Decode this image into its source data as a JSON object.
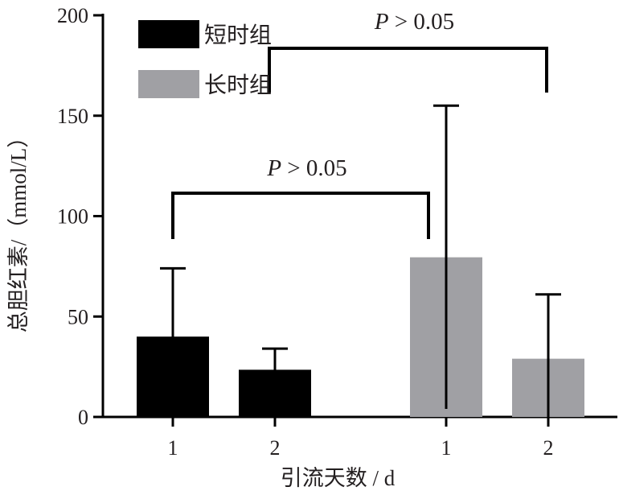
{
  "chart_data": {
    "type": "bar",
    "title": "",
    "ylabel": "总胆红素/（mmol/L）",
    "xlabel": "引流天数 / d",
    "ylim": [
      0,
      200
    ],
    "yticks": [
      0,
      50,
      100,
      150,
      200
    ],
    "grid": false,
    "legend_position": "top-left",
    "colors": {
      "short": "#000000",
      "long": "#a0a0a4"
    },
    "series": [
      {
        "name": "短时组",
        "categories": [
          "1",
          "2"
        ],
        "values": [
          40,
          23.5
        ],
        "error": [
          34,
          10.5
        ]
      },
      {
        "name": "长时组",
        "categories": [
          "1",
          "2"
        ],
        "values": [
          79.5,
          29
        ],
        "error": [
          75.5,
          32
        ]
      }
    ],
    "annotations": [
      {
        "text_italic": "P",
        "text_rest": " > 0.05",
        "between": "短时组 day 1 vs 长时组 day 1"
      },
      {
        "text_italic": "P",
        "text_rest": " > 0.05",
        "between": "短时组 day 1 vs 长时组 day 2"
      }
    ]
  }
}
